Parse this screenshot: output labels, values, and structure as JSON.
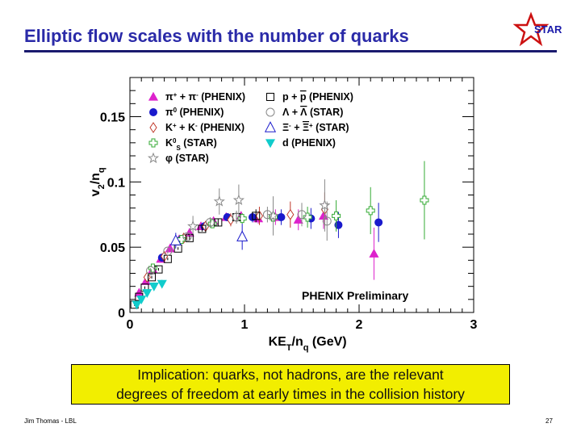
{
  "slide": {
    "title": "Elliptic flow scales with the number of quarks",
    "logo_text": "STAR",
    "callout_line1": "Implication: quarks, not hadrons, are the relevant",
    "callout_line2": "degrees of freedom at early times in the collision history",
    "footer_left": "Jim Thomas - LBL",
    "footer_right": "27"
  },
  "chart_data": {
    "type": "scatter",
    "title": "",
    "xlabel": "KE_T/n_q (GeV)",
    "ylabel": "v_2/n_q",
    "xlim": [
      0,
      3
    ],
    "ylim": [
      0,
      0.18
    ],
    "x_ticks": [
      "0",
      "1",
      "2",
      "3"
    ],
    "y_ticks": [
      "0",
      "0.05",
      "0.1",
      "0.15"
    ],
    "annotation": "PHENIX Preliminary",
    "colors": {
      "magenta": "#dd22cc",
      "blue": "#1a1acc",
      "red": "#c0392b",
      "green": "#33aa33",
      "cyan": "#11cccc",
      "black": "#000000",
      "gray": "#888888"
    },
    "legend": [
      {
        "label_parts": [
          "π",
          "+",
          " + π",
          "-",
          " (PHENIX)"
        ],
        "marker": "triangle-filled",
        "color": "#dd22cc"
      },
      {
        "label_parts": [
          "π",
          "0",
          " (PHENIX)"
        ],
        "marker": "circle-filled",
        "color": "#1a1acc"
      },
      {
        "label_parts": [
          "K",
          "+",
          " + K",
          "-",
          " (PHENIX)"
        ],
        "marker": "diamond-open",
        "color": "#c0392b"
      },
      {
        "label_parts": [
          "K",
          "0",
          "S",
          " (STAR)"
        ],
        "marker": "cross-open",
        "color": "#33aa33"
      },
      {
        "label_parts": [
          "φ (STAR)"
        ],
        "marker": "star-open",
        "color": "#888888"
      },
      {
        "label_parts": [
          "p + ",
          "p",
          " (PHENIX)"
        ],
        "marker": "square-open",
        "color": "#000000"
      },
      {
        "label_parts": [
          "Λ + ",
          "Λ",
          " (STAR)"
        ],
        "marker": "circle-open",
        "color": "#888888"
      },
      {
        "label_parts": [
          "Ξ",
          "-",
          " + ",
          "Ξ",
          "+",
          " (STAR)"
        ],
        "marker": "triangle-open",
        "color": "#1a1acc"
      },
      {
        "label_parts": [
          "d (PHENIX)"
        ],
        "marker": "triangle-down-filled",
        "color": "#11cccc"
      }
    ],
    "series": [
      {
        "name": "pi+ + pi- (PHENIX)",
        "marker": "triangle-filled",
        "color": "#dd22cc",
        "x": [
          0.08,
          0.14,
          0.2,
          0.27,
          0.35,
          0.43,
          0.52,
          0.62,
          0.73,
          0.84,
          0.97,
          1.12,
          1.27,
          1.47,
          1.69,
          2.13
        ],
        "y": [
          0.015,
          0.024,
          0.033,
          0.041,
          0.049,
          0.056,
          0.061,
          0.066,
          0.07,
          0.073,
          0.074,
          0.072,
          0.073,
          0.071,
          0.074,
          0.045
        ],
        "err": [
          0.001,
          0.001,
          0.001,
          0.001,
          0.001,
          0.001,
          0.001,
          0.001,
          0.002,
          0.002,
          0.003,
          0.004,
          0.006,
          0.008,
          0.01,
          0.02
        ]
      },
      {
        "name": "pi0 (PHENIX)",
        "marker": "circle-filled",
        "color": "#1a1acc",
        "x": [
          0.28,
          0.45,
          0.65,
          0.85,
          1.07,
          1.32,
          1.58,
          1.82,
          2.17
        ],
        "y": [
          0.042,
          0.056,
          0.066,
          0.073,
          0.073,
          0.073,
          0.072,
          0.067,
          0.069
        ],
        "err": [
          0.002,
          0.002,
          0.002,
          0.003,
          0.004,
          0.006,
          0.008,
          0.01,
          0.015
        ]
      },
      {
        "name": "K+ + K- (PHENIX)",
        "marker": "diamond-open",
        "color": "#c0392b",
        "x": [
          0.15,
          0.3,
          0.47,
          0.66,
          0.88,
          1.13,
          1.4,
          1.7
        ],
        "y": [
          0.027,
          0.043,
          0.057,
          0.066,
          0.071,
          0.074,
          0.075,
          0.079
        ],
        "err": [
          0.002,
          0.002,
          0.003,
          0.004,
          0.005,
          0.007,
          0.01,
          0.013
        ]
      },
      {
        "name": "K0S (STAR)",
        "marker": "cross-open",
        "color": "#33aa33",
        "x": [
          0.2,
          0.45,
          0.72,
          0.98,
          1.25,
          1.55,
          1.8,
          2.1,
          2.57
        ],
        "y": [
          0.034,
          0.056,
          0.068,
          0.072,
          0.073,
          0.073,
          0.074,
          0.078,
          0.086
        ],
        "err": [
          0.002,
          0.002,
          0.003,
          0.004,
          0.006,
          0.008,
          0.012,
          0.018,
          0.03
        ]
      },
      {
        "name": "phi (STAR)",
        "marker": "star-open",
        "color": "#888888",
        "x": [
          0.55,
          0.78,
          0.95,
          1.25,
          1.7
        ],
        "y": [
          0.066,
          0.085,
          0.086,
          0.074,
          0.082
        ],
        "err": [
          0.008,
          0.01,
          0.012,
          0.015,
          0.02
        ]
      },
      {
        "name": "p + pbar (PHENIX)",
        "marker": "square-open",
        "color": "#000000",
        "x": [
          0.04,
          0.08,
          0.13,
          0.19,
          0.25,
          0.33,
          0.42,
          0.52,
          0.63,
          0.77,
          0.93,
          1.1
        ],
        "y": [
          0.006,
          0.012,
          0.019,
          0.027,
          0.033,
          0.041,
          0.049,
          0.057,
          0.064,
          0.069,
          0.073,
          0.074
        ],
        "err": [
          0.001,
          0.001,
          0.001,
          0.001,
          0.001,
          0.001,
          0.001,
          0.002,
          0.002,
          0.003,
          0.004,
          0.005
        ]
      },
      {
        "name": "Lambda + Lambdabar (STAR)",
        "marker": "circle-open",
        "color": "#888888",
        "x": [
          0.18,
          0.33,
          0.5,
          0.7,
          0.93,
          1.2,
          1.5,
          1.72
        ],
        "y": [
          0.032,
          0.047,
          0.058,
          0.069,
          0.073,
          0.075,
          0.075,
          0.07
        ],
        "err": [
          0.002,
          0.002,
          0.003,
          0.004,
          0.005,
          0.006,
          0.009,
          0.015
        ]
      },
      {
        "name": "Xi- + Xi+ (STAR)",
        "marker": "triangle-open",
        "color": "#1a1acc",
        "x": [
          0.4,
          0.98
        ],
        "y": [
          0.055,
          0.058
        ],
        "err": [
          0.006,
          0.01
        ]
      },
      {
        "name": "d (PHENIX)",
        "marker": "triangle-down-filled",
        "color": "#11cccc",
        "x": [
          0.06,
          0.1,
          0.15,
          0.21,
          0.28
        ],
        "y": [
          0.006,
          0.01,
          0.015,
          0.02,
          0.022
        ],
        "err": [
          0.002,
          0.002,
          0.002,
          0.003,
          0.003
        ]
      }
    ]
  }
}
